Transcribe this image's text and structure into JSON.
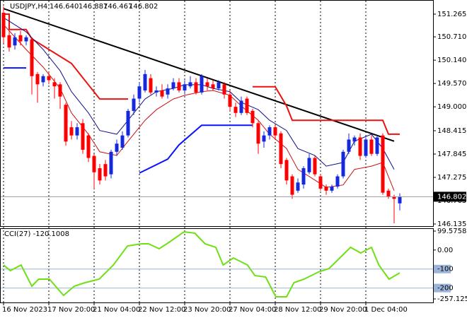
{
  "chart_data": [
    {
      "type": "candlestick",
      "title": "USDJPY,H4",
      "header_values": [
        "146.640",
        "146.887",
        "146.467",
        "146.802"
      ],
      "open": [
        151.3,
        150.75,
        150.5,
        150.75,
        150.6,
        150.65,
        149.8,
        149.6,
        149.75,
        149.6,
        149.55,
        149.05,
        148.5,
        148.3,
        148.6,
        148.3,
        147.8,
        147.5,
        147.6,
        147.35,
        147.9,
        148.0,
        148.3,
        148.9,
        149.2,
        149.4,
        149.7,
        149.35,
        149.4,
        149.3,
        149.45,
        149.6,
        149.4,
        149.5,
        149.6,
        149.35,
        149.6,
        149.55,
        149.45,
        149.55,
        149.3,
        149.0,
        148.85,
        149.2,
        148.9,
        148.6,
        148.15,
        148.3,
        148.5,
        148.35,
        147.7,
        147.3,
        146.95,
        147.1,
        147.4,
        147.75,
        147.3,
        147.05,
        146.95,
        147.05,
        147.3,
        147.9,
        148.15,
        148.25,
        147.8,
        148.2,
        147.85,
        148.3,
        146.95,
        146.8,
        146.64
      ],
      "high": [
        151.45,
        150.85,
        150.8,
        150.85,
        150.75,
        150.7,
        149.85,
        149.8,
        149.85,
        149.7,
        149.6,
        149.1,
        148.65,
        148.6,
        148.7,
        148.35,
        147.85,
        147.6,
        147.7,
        147.95,
        148.2,
        148.4,
        148.95,
        149.3,
        149.6,
        149.9,
        149.8,
        149.5,
        149.55,
        149.55,
        149.7,
        149.7,
        149.65,
        149.75,
        149.7,
        149.8,
        149.7,
        149.65,
        149.65,
        149.6,
        149.4,
        149.1,
        149.25,
        149.25,
        148.95,
        148.65,
        148.4,
        148.55,
        148.55,
        148.4,
        147.75,
        147.35,
        147.25,
        147.55,
        147.85,
        147.8,
        147.35,
        147.1,
        147.1,
        147.35,
        147.95,
        148.35,
        148.3,
        148.35,
        148.25,
        148.3,
        148.3,
        148.35,
        147.0,
        146.85,
        146.887
      ],
      "low": [
        150.55,
        150.35,
        150.4,
        150.5,
        150.5,
        149.3,
        149.1,
        149.5,
        149.55,
        149.2,
        148.95,
        148.05,
        148.2,
        148.2,
        147.85,
        147.65,
        147.0,
        147.1,
        147.2,
        147.25,
        147.8,
        147.95,
        148.25,
        148.8,
        149.1,
        149.35,
        149.3,
        149.25,
        149.2,
        149.2,
        149.4,
        149.35,
        149.3,
        149.45,
        149.3,
        149.3,
        149.4,
        149.4,
        149.4,
        149.2,
        148.9,
        148.75,
        148.8,
        148.8,
        148.5,
        147.85,
        148.0,
        148.2,
        148.2,
        147.5,
        147.1,
        146.75,
        146.9,
        147.0,
        147.35,
        147.3,
        146.95,
        146.85,
        146.9,
        147.0,
        147.25,
        147.85,
        148.05,
        147.7,
        147.75,
        147.8,
        147.8,
        146.85,
        146.75,
        146.15,
        146.467
      ],
      "close": [
        150.7,
        150.45,
        150.7,
        150.6,
        150.7,
        149.75,
        149.55,
        149.75,
        149.65,
        149.5,
        149.25,
        148.15,
        148.3,
        148.5,
        147.95,
        147.75,
        147.4,
        147.2,
        147.3,
        147.9,
        148.1,
        148.3,
        148.9,
        149.2,
        149.5,
        149.8,
        149.35,
        149.4,
        149.25,
        149.45,
        149.6,
        149.4,
        149.55,
        149.6,
        149.35,
        149.75,
        149.5,
        149.45,
        149.6,
        149.3,
        149.0,
        148.85,
        149.15,
        148.85,
        148.6,
        148.1,
        148.3,
        148.5,
        148.3,
        147.6,
        147.2,
        146.85,
        147.15,
        147.5,
        147.75,
        147.35,
        147.0,
        146.95,
        147.05,
        147.3,
        147.9,
        148.2,
        148.25,
        147.8,
        148.2,
        147.85,
        148.25,
        146.9,
        146.8,
        146.75,
        146.802
      ],
      "up_color": "#1428dc",
      "down_color": "#ff0000",
      "xticks": [
        {
          "value": 0,
          "label": "16 Nov 2023"
        },
        {
          "value": 8,
          "label": "17 Nov 20:00"
        },
        {
          "value": 16,
          "label": "21 Nov 04:00"
        },
        {
          "value": 24,
          "label": "22 Nov 12:00"
        },
        {
          "value": 32,
          "label": "23 Nov 20:00"
        },
        {
          "value": 40,
          "label": "27 Nov 04:00"
        },
        {
          "value": 48,
          "label": "28 Nov 12:00"
        },
        {
          "value": 56,
          "label": "29 Nov 20:00"
        },
        {
          "value": 64,
          "label": "1 Dec 04:00"
        }
      ],
      "ylim": [
        146.083,
        151.559
      ],
      "yticks": [
        151.265,
        {
          "value": 150.71,
          "label": "150.710"
        },
        {
          "value": 150.14,
          "label": "150.140"
        },
        {
          "value": 149.57,
          "label": "149.570"
        },
        {
          "value": 149,
          "label": "149.000"
        },
        148.415,
        147.845,
        147.275,
        146.705,
        146.135
      ],
      "overlays": [
        {
          "color": "#000000",
          "width": 2,
          "x": [
            0,
            69
          ],
          "values": [
            151.4,
            148.16
          ]
        },
        {
          "color": "#ee1111",
          "width": 2,
          "x": [
            0,
            1,
            1,
            4,
            5,
            12,
            14,
            17,
            22,
            33,
            44,
            48,
            50,
            51,
            67,
            68,
            70
          ],
          "values": [
            151.265,
            151.265,
            150.89,
            150.89,
            150.66,
            150.06,
            149.71,
            149.19,
            149.19,
            null,
            149.49,
            149.49,
            149.02,
            148.67,
            148.67,
            148.33,
            148.33
          ]
        },
        {
          "color": "#0a14ff",
          "width": 2,
          "x": [
            0,
            4,
            14,
            24,
            29,
            31,
            35,
            44
          ],
          "values": [
            149.95,
            149.95,
            null,
            147.38,
            147.72,
            148.07,
            148.55,
            148.55
          ]
        },
        {
          "color": "#10108c",
          "width": 1,
          "x": [
            0,
            4,
            7,
            10,
            12,
            15,
            17,
            20,
            22,
            25,
            27,
            30,
            32,
            35,
            37,
            40,
            42,
            45,
            47,
            50,
            52,
            55,
            57,
            60,
            62,
            65,
            67,
            69
          ],
          "values": [
            151.18,
            150.83,
            150.4,
            149.88,
            149.37,
            148.85,
            148.42,
            148.33,
            148.67,
            149.19,
            149.37,
            149.45,
            149.54,
            149.54,
            149.45,
            149.37,
            149.11,
            148.93,
            148.67,
            148.42,
            147.98,
            147.81,
            147.55,
            147.64,
            148.16,
            148.33,
            147.98,
            147.47
          ]
        },
        {
          "color": "#cc1010",
          "width": 1,
          "x": [
            0,
            4,
            7,
            10,
            12,
            15,
            17,
            20,
            22,
            25,
            27,
            30,
            32,
            35,
            37,
            40,
            42,
            45,
            47,
            50,
            52,
            55,
            57,
            60,
            62,
            65,
            67,
            69
          ],
          "values": [
            151.01,
            150.4,
            149.97,
            149.45,
            148.85,
            148.33,
            147.9,
            147.81,
            148.16,
            148.67,
            148.93,
            149.19,
            149.28,
            149.37,
            149.4,
            149.28,
            149.02,
            148.67,
            148.33,
            147.98,
            147.47,
            147.21,
            147.03,
            147.09,
            147.47,
            147.55,
            147.64,
            146.95
          ]
        }
      ],
      "last_price": 146.802,
      "grid": true
    },
    {
      "type": "line",
      "title": "CCI(27) -120.1008",
      "color": "#6ee014",
      "x": [
        0,
        1.2,
        3.1,
        5,
        6.2,
        8.1,
        10.6,
        12.5,
        14.4,
        16.9,
        19.4,
        21.9,
        24.4,
        25.6,
        27.5,
        29.4,
        31.9,
        33.8,
        35.6,
        37.5,
        38.8,
        40.6,
        43.1,
        44.4,
        46.3,
        48.1,
        50,
        51.3,
        53.1,
        55.6,
        57.5,
        59.4,
        61.3,
        63.1,
        65,
        66.3,
        68.1,
        70
      ],
      "values": [
        -78.8,
        -108.5,
        -78.8,
        -190.2,
        -153.1,
        -153.1,
        -238.5,
        -190.2,
        -171.7,
        -153.1,
        -78.8,
        21.6,
        32.7,
        32.7,
        6.7,
        43.8,
        95.9,
        88.4,
        32.7,
        14.1,
        -78.8,
        -41.6,
        -78.8,
        -134.5,
        -141.9,
        -246,
        -246,
        -171.7,
        -153.1,
        -115.9,
        -97.3,
        -41.6,
        14.1,
        -15.6,
        14.1,
        -78.8,
        -153.1,
        -120.1008
      ],
      "ylim": [
        -257.1256,
        99.5758
      ],
      "yticks": [
        99.5758,
        {
          "value": 0,
          "label": "0.00"
        },
        -100,
        -200,
        -257.1256
      ],
      "levels": [
        -100,
        -200
      ]
    }
  ]
}
